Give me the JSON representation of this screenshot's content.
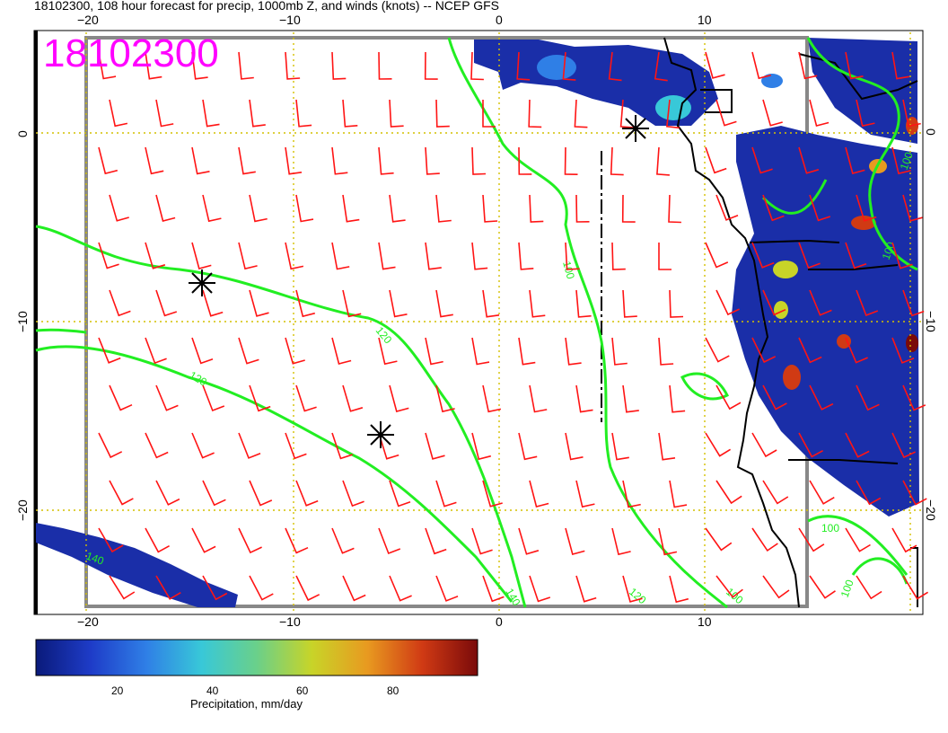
{
  "title": "18102300, 108 hour forecast for precip, 1000mb Z, and winds (knots) -- NCEP GFS",
  "stamp": "18102300",
  "axes": {
    "top_lon": [
      "−20",
      "−10",
      "0",
      "10"
    ],
    "bottom_lon": [
      "−20",
      "−10",
      "0",
      "10"
    ],
    "left_lat": [
      "0",
      "−10",
      "−20"
    ],
    "right_lat": [
      "0",
      "−10",
      "−20"
    ]
  },
  "contour_labels": [
    "100",
    "120",
    "120",
    "140",
    "120",
    "100",
    "100",
    "100",
    "140",
    "100",
    "100"
  ],
  "colorbar": {
    "ticks": [
      "20",
      "40",
      "60",
      "80"
    ],
    "caption": "Precipitation, mm/day",
    "colors": [
      "#0a1a7a",
      "#1e3cc8",
      "#2f7fe6",
      "#38c8d8",
      "#6ad08a",
      "#c8d428",
      "#e89a20",
      "#d03a14",
      "#7a0a0a"
    ]
  },
  "colors": {
    "contour": "#22ee22",
    "barb": "#ff1414",
    "grid": "#d4c000",
    "coast": "#000000"
  }
}
